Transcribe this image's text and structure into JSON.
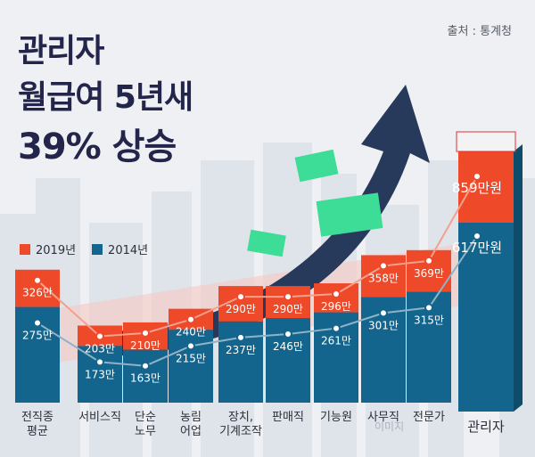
{
  "source": "출처 : 통계청",
  "title_lines": [
    "관리자",
    "월급여 5년새",
    "39% 상승"
  ],
  "watermark": "이미지",
  "colors": {
    "series_2019": "#ee4a2a",
    "series_2014": "#14658e",
    "title": "#23264a",
    "arrow": "#283a5c",
    "money": "#3ddc97"
  },
  "icons": [
    "arrow-up-right-icon",
    "money-bill-icon",
    "cash-stack-icon"
  ],
  "chart_data": {
    "type": "bar",
    "categories": [
      "전직종\n평균",
      "서비스직",
      "단순\n노무",
      "농림\n어업",
      "장치,\n기계조작",
      "판매직",
      "기능원",
      "사무직",
      "전문가",
      "관리자"
    ],
    "series": [
      {
        "name": "2019년",
        "values": [
          326,
          203,
          210,
          240,
          290,
          290,
          296,
          358,
          369,
          859
        ],
        "labels": [
          "326만",
          "203만",
          "210만",
          "240만",
          "290만",
          "290만",
          "296만",
          "358만",
          "369만",
          "859만원"
        ]
      },
      {
        "name": "2014년",
        "values": [
          275,
          173,
          163,
          215,
          237,
          246,
          261,
          301,
          315,
          617
        ],
        "labels": [
          "275만",
          "173만",
          "163만",
          "215만",
          "237만",
          "246만",
          "261만",
          "301만",
          "315만",
          "617만원"
        ]
      }
    ],
    "unit": "만원",
    "legend_position": "top-left",
    "grid": false,
    "ylim": [
      0,
      900
    ]
  }
}
